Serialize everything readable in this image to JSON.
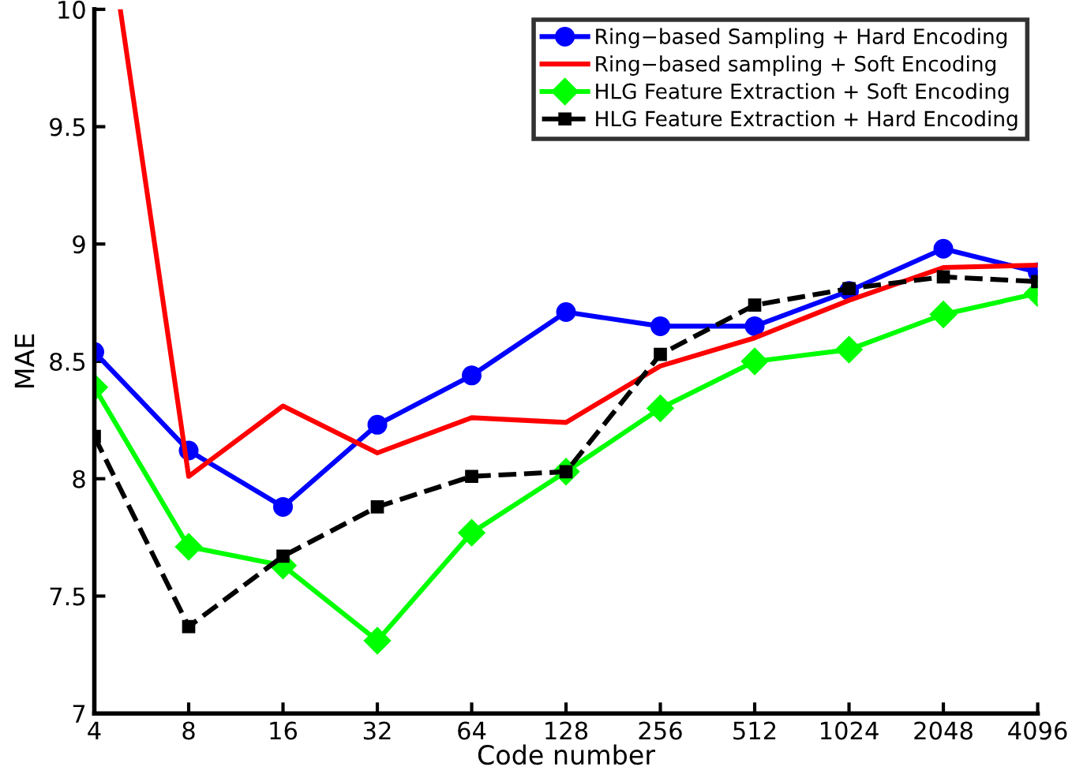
{
  "chart_data": {
    "type": "line",
    "xlabel": "Code number",
    "ylabel": "MAE",
    "log": "x",
    "xlim": [
      4,
      4096
    ],
    "xticks": [
      4,
      8,
      16,
      32,
      64,
      128,
      256,
      512,
      1024,
      2048,
      4096
    ],
    "ylim": [
      7,
      10
    ],
    "yticks": [
      7,
      7.5,
      8,
      8.5,
      9,
      9.5,
      10
    ],
    "grid": false,
    "legend": "top right",
    "x": [
      4,
      8,
      16,
      32,
      64,
      128,
      256,
      512,
      1024,
      2048,
      4096
    ],
    "series": [
      {
        "name": "Ring−based Sampling + Hard Encoding",
        "color": "#0000ff",
        "marker": "circle",
        "line_style": "solid",
        "values": [
          8.54,
          8.12,
          7.88,
          8.23,
          8.44,
          8.71,
          8.65,
          8.65,
          8.8,
          8.98,
          8.88
        ]
      },
      {
        "name": "Ring−based sampling + Soft Encoding",
        "color": "#ff0000",
        "marker": "none",
        "line_style": "solid",
        "x": [
          4.84,
          8,
          16,
          32,
          64,
          128,
          256,
          512,
          1024,
          2048,
          4096
        ],
        "values": [
          10,
          8.01,
          8.31,
          8.11,
          8.26,
          8.24,
          8.48,
          8.6,
          8.76,
          8.9,
          8.91
        ]
      },
      {
        "name": "HLG Feature Extraction + Soft Encoding",
        "color": "#00ff00",
        "marker": "diamond",
        "line_style": "solid",
        "values": [
          8.39,
          7.71,
          7.63,
          7.31,
          7.77,
          8.03,
          8.3,
          8.5,
          8.55,
          8.7,
          8.79
        ]
      },
      {
        "name": "HLG Feature Extraction + Hard Encoding",
        "color": "#000000",
        "marker": "square",
        "line_style": "dashed",
        "values": [
          8.18,
          7.37,
          7.67,
          7.88,
          8.01,
          8.03,
          8.53,
          8.74,
          8.81,
          8.86,
          8.84
        ]
      }
    ]
  }
}
